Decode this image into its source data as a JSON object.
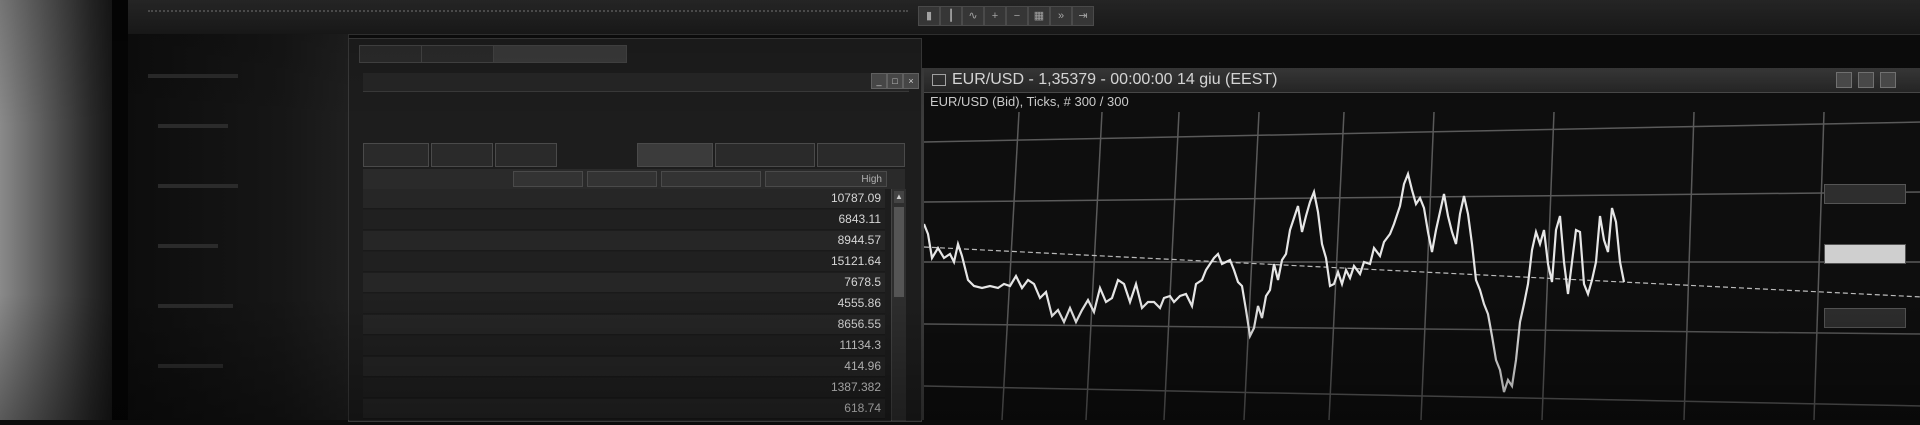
{
  "colors": {
    "background": "#0c0c0c",
    "chart_line": "#e6e6e6",
    "grid": "#5a5a5a",
    "panel": "#1d1d1d"
  },
  "toolbar": {
    "icons": [
      "chart-bars-icon",
      "chart-candle-icon",
      "chart-line-icon",
      "zoom-in-icon",
      "zoom-out-icon",
      "tile-icon",
      "autoscroll-icon",
      "chart-shift-icon"
    ]
  },
  "market_watch": {
    "columns": [
      "",
      "High"
    ],
    "rows": [
      {
        "high": "10787.09"
      },
      {
        "high": "6843.11"
      },
      {
        "high": "8944.57"
      },
      {
        "high": "15121.64"
      },
      {
        "high": "7678.5"
      },
      {
        "high": "4555.86"
      },
      {
        "high": "8656.55"
      },
      {
        "high": "11134.3"
      },
      {
        "high": "414.96"
      },
      {
        "high": "1387.382"
      },
      {
        "high": "618.74"
      }
    ]
  },
  "chart": {
    "window_title": "EUR/USD - 1,35379 - 00:00:00  14 giu (EEST)",
    "subtitle": "EUR/USD (Bid), Ticks, # 300 / 300"
  }
}
